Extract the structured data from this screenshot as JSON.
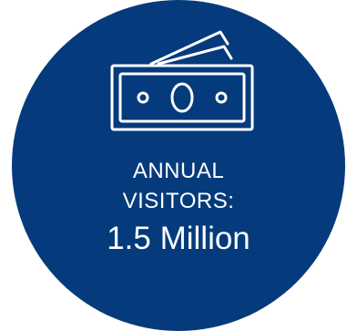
{
  "badge": {
    "background_color": "#053b7c",
    "text_color": "#ffffff",
    "icon": "money-bills-icon",
    "label_line1": "ANNUAL",
    "label_line2": "VISITORS:",
    "value": "1.5 Million"
  }
}
